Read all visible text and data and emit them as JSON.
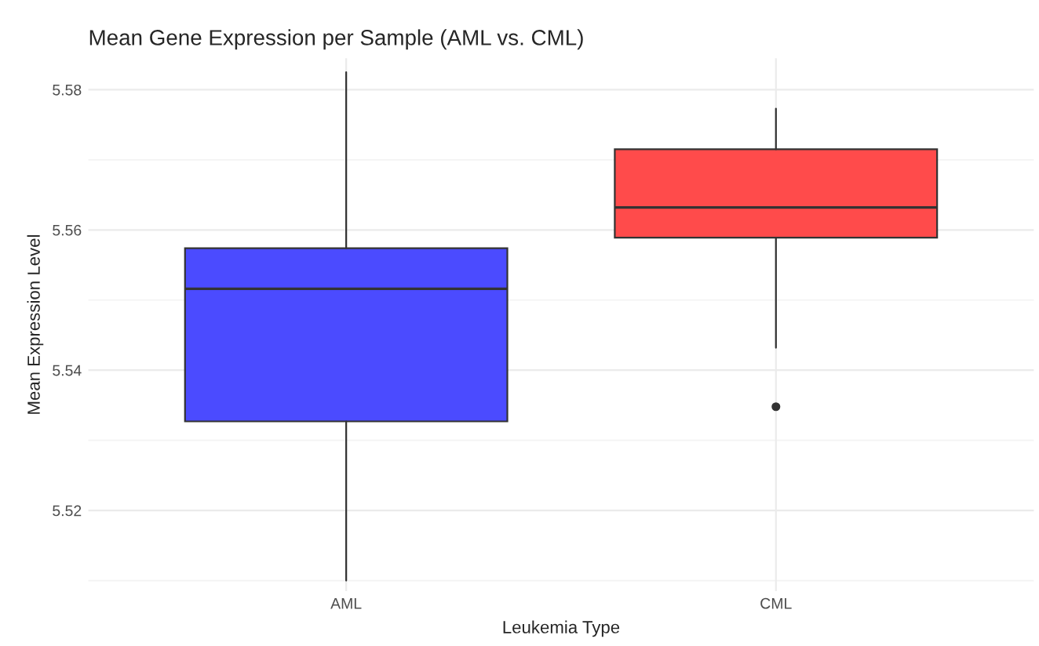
{
  "chart_data": {
    "type": "box",
    "title": "Mean Gene Expression per Sample (AML vs. CML)",
    "xlabel": "Leukemia Type",
    "ylabel": "Mean Expression Level",
    "categories": [
      "AML",
      "CML"
    ],
    "boxes": [
      {
        "low": 5.51,
        "q1": 5.5327,
        "median": 5.5516,
        "q3": 5.5574,
        "high": 5.5825
      },
      {
        "low": 5.5432,
        "q1": 5.5589,
        "median": 5.5632,
        "q3": 5.5715,
        "high": 5.5773,
        "outliers": [
          5.5348
        ]
      }
    ],
    "colors": [
      "#4b4bff",
      "#ff4b4b"
    ],
    "ylim": [
      5.5085,
      5.5845
    ],
    "yticks": [
      5.52,
      5.54,
      5.56,
      5.58
    ],
    "grid": true,
    "legend": false
  }
}
